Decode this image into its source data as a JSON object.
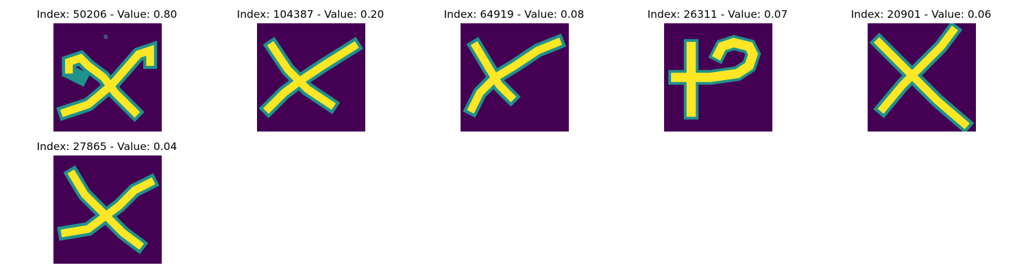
{
  "colors": {
    "background": "#440154",
    "stroke_core": "#fde725",
    "stroke_halo": "#21918c",
    "stroke_mid": "#5ec962"
  },
  "panels": [
    {
      "title": "Index: 50206 - Value: 0.80"
    },
    {
      "title": "Index: 104387 - Value: 0.20"
    },
    {
      "title": "Index: 64919 - Value: 0.08"
    },
    {
      "title": "Index: 26311 - Value: 0.07"
    },
    {
      "title": "Index: 20901 - Value: 0.06"
    },
    {
      "title": "Index: 27865 - Value: 0.04"
    }
  ]
}
